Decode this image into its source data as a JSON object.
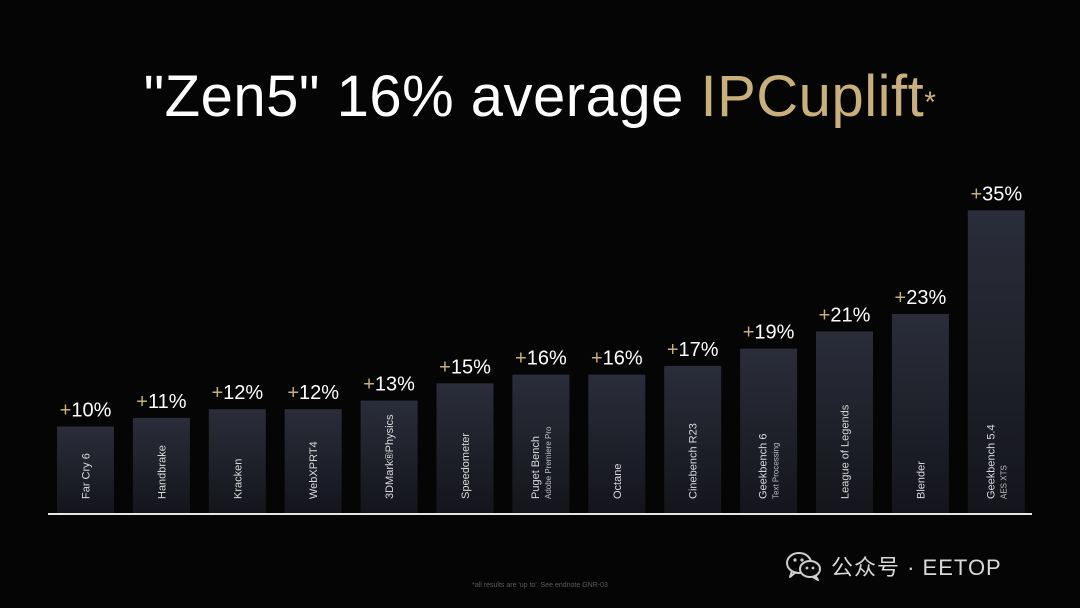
{
  "slide": {
    "title_main": "\"Zen5\" 16% average ",
    "title_accent": "IPCuplift",
    "title_star": "*",
    "footnote": "*all results are 'up to'. See endnote GNR-03",
    "watermark": "公众号 · EETOP",
    "watermark_icon": "wechat-icon"
  },
  "colors": {
    "background": "#050505",
    "bar_top": "#2a2d3a",
    "bar_bottom": "#14151b",
    "accent_gold": "#c9b07a",
    "baseline": "#e6e6e6",
    "text": "#ffffff"
  },
  "chart_data": {
    "type": "bar",
    "title": "\"Zen5\" 16% average IPCuplift*",
    "ylim": [
      0,
      35
    ],
    "grid": false,
    "legend": "none",
    "categories": [
      [
        "Far Cry 6"
      ],
      [
        "Handbrake"
      ],
      [
        "Kracken"
      ],
      [
        "WebXPRT4"
      ],
      [
        "3DMark®Physics"
      ],
      [
        "Speedometer"
      ],
      [
        "Puget Bench",
        "Adobe Premiere Pro"
      ],
      [
        "Octane"
      ],
      [
        "Cinebench R23"
      ],
      [
        "Geekbench 6",
        "Text Processing"
      ],
      [
        "League of Legends"
      ],
      [
        "Blender"
      ],
      [
        "Geekbench 5.4",
        "AES XTS"
      ]
    ],
    "values": [
      10,
      11,
      12,
      12,
      13,
      15,
      16,
      16,
      17,
      19,
      21,
      23,
      35
    ],
    "data_labels": [
      "+10%",
      "+11%",
      "+12%",
      "+12%",
      "+13%",
      "+15%",
      "+16%",
      "+16%",
      "+17%",
      "+19%",
      "+21%",
      "+23%",
      "+35%"
    ]
  }
}
